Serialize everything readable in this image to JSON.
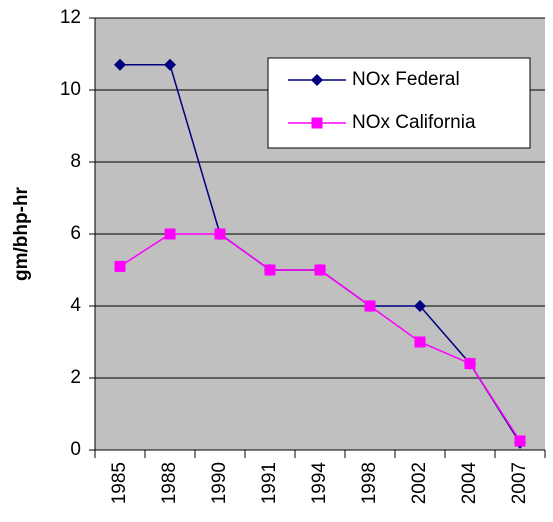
{
  "chart_data": {
    "type": "line",
    "y_label": "gm/bhp-hr",
    "categories": [
      "1985",
      "1988",
      "1990",
      "1991",
      "1994",
      "1998",
      "2002",
      "2004",
      "2007"
    ],
    "series": [
      {
        "name": "NOx Federal",
        "color": "#000080",
        "marker": "diamond",
        "values": [
          10.7,
          10.7,
          6,
          5,
          5,
          4,
          4,
          2.4,
          0.2
        ]
      },
      {
        "name": "NOx California",
        "color": "#ff00ff",
        "marker": "square",
        "values": [
          5.1,
          6,
          6,
          5,
          5,
          4,
          3,
          2.4,
          0.25
        ]
      }
    ],
    "ylim": [
      0,
      12
    ],
    "yticks": [
      0,
      2,
      4,
      6,
      8,
      10,
      12
    ],
    "grid": true,
    "legend": "upper right",
    "background": "#c0c0c0"
  }
}
